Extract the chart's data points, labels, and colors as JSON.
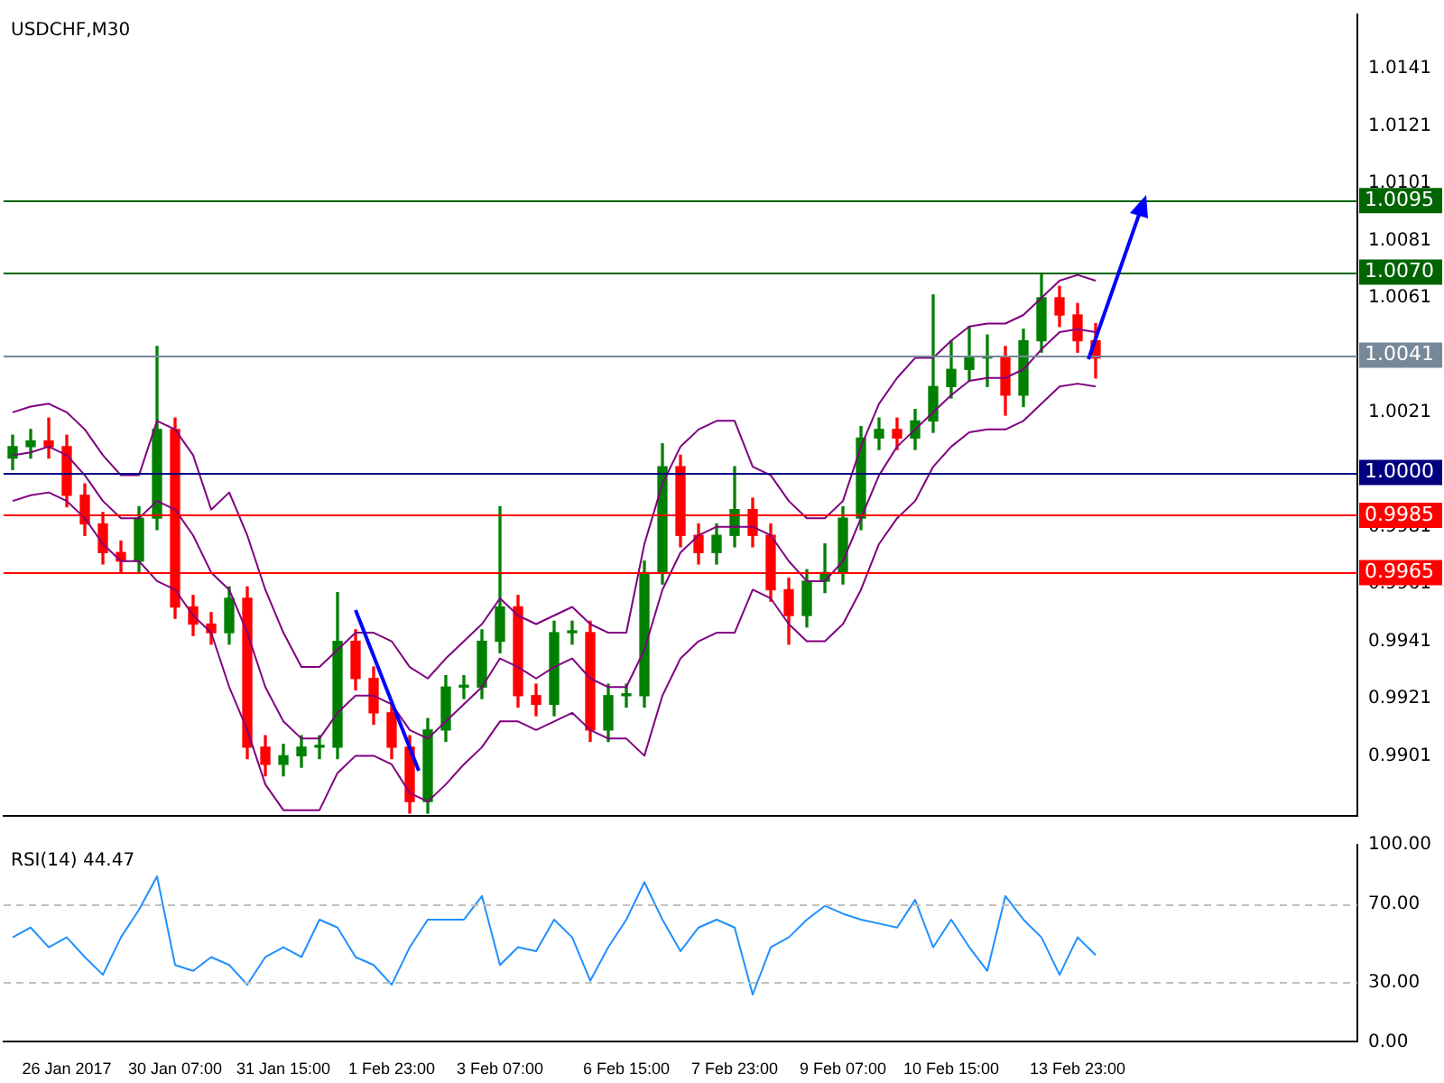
{
  "chart_data": [
    {
      "type": "candlestick",
      "title": "USDCHF,M30",
      "tick_labels": "y",
      "ohlc": [
        [
          1.0005,
          1.0013,
          1.0001,
          1.0009
        ],
        [
          1.0009,
          1.0015,
          1.0005,
          1.0011
        ],
        [
          1.0011,
          1.0019,
          1.0005,
          1.0009
        ],
        [
          1.0009,
          1.0013,
          0.9988,
          0.9992
        ],
        [
          0.9992,
          0.9996,
          0.9978,
          0.9982
        ],
        [
          0.9982,
          0.9986,
          0.9968,
          0.9972
        ],
        [
          0.9972,
          0.9976,
          0.9965,
          0.9969
        ],
        [
          0.9969,
          0.9988,
          0.9965,
          0.9984
        ],
        [
          0.9984,
          1.0044,
          0.998,
          1.0015
        ],
        [
          1.0015,
          1.0019,
          0.9949,
          0.9953
        ],
        [
          0.9953,
          0.9957,
          0.9943,
          0.9947
        ],
        [
          0.9947,
          0.9951,
          0.994,
          0.9944
        ],
        [
          0.9944,
          0.996,
          0.994,
          0.9956
        ],
        [
          0.9956,
          0.996,
          0.99,
          0.9904
        ],
        [
          0.9904,
          0.9908,
          0.9894,
          0.9898
        ],
        [
          0.9898,
          0.9905,
          0.9894,
          0.9901
        ],
        [
          0.9901,
          0.9908,
          0.9897,
          0.9904
        ],
        [
          0.9904,
          0.9908,
          0.99,
          0.9904
        ],
        [
          0.9904,
          0.9958,
          0.99,
          0.9941
        ],
        [
          0.9941,
          0.9945,
          0.9924,
          0.9928
        ],
        [
          0.9928,
          0.9932,
          0.9912,
          0.9916
        ],
        [
          0.9916,
          0.992,
          0.99,
          0.9904
        ],
        [
          0.9904,
          0.9908,
          0.9881,
          0.9885
        ],
        [
          0.9885,
          0.9914,
          0.9881,
          0.991
        ],
        [
          0.991,
          0.9929,
          0.9906,
          0.9925
        ],
        [
          0.9925,
          0.9929,
          0.9921,
          0.9925
        ],
        [
          0.9925,
          0.9945,
          0.9921,
          0.9941
        ],
        [
          0.9941,
          0.9988,
          0.9937,
          0.9953
        ],
        [
          0.9953,
          0.9957,
          0.9918,
          0.9922
        ],
        [
          0.9922,
          0.9926,
          0.9915,
          0.9919
        ],
        [
          0.9919,
          0.9948,
          0.9915,
          0.9944
        ],
        [
          0.9944,
          0.9948,
          0.994,
          0.9944
        ],
        [
          0.9944,
          0.9948,
          0.9906,
          0.991
        ],
        [
          0.991,
          0.9926,
          0.9906,
          0.9922
        ],
        [
          0.9922,
          0.9926,
          0.9918,
          0.9922
        ],
        [
          0.9922,
          0.9969,
          0.9918,
          0.9965
        ],
        [
          0.9965,
          1.001,
          0.9961,
          1.0002
        ],
        [
          1.0002,
          1.0006,
          0.9974,
          0.9978
        ],
        [
          0.9978,
          0.9982,
          0.9968,
          0.9972
        ],
        [
          0.9972,
          0.9982,
          0.9968,
          0.9978
        ],
        [
          0.9978,
          1.0002,
          0.9974,
          0.9987
        ],
        [
          0.9987,
          0.9991,
          0.9974,
          0.9978
        ],
        [
          0.9978,
          0.9982,
          0.9955,
          0.9959
        ],
        [
          0.9959,
          0.9963,
          0.994,
          0.995
        ],
        [
          0.995,
          0.9966,
          0.9946,
          0.9962
        ],
        [
          0.9962,
          0.9975,
          0.9958,
          0.9965
        ],
        [
          0.9965,
          0.9988,
          0.9961,
          0.9984
        ],
        [
          0.9984,
          1.0016,
          0.998,
          1.0012
        ],
        [
          1.0012,
          1.0019,
          1.0008,
          1.0015
        ],
        [
          1.0015,
          1.0019,
          1.0008,
          1.0012
        ],
        [
          1.0012,
          1.0022,
          1.0008,
          1.0018
        ],
        [
          1.0018,
          1.0062,
          1.0014,
          1.003
        ],
        [
          1.003,
          1.0046,
          1.0026,
          1.0036
        ],
        [
          1.0036,
          1.0051,
          1.0032,
          1.004
        ],
        [
          1.004,
          1.0048,
          1.003,
          1.004
        ],
        [
          1.004,
          1.0044,
          1.002,
          1.0027
        ],
        [
          1.0027,
          1.005,
          1.0023,
          1.0046
        ],
        [
          1.0046,
          1.0069,
          1.0042,
          1.0061
        ],
        [
          1.0061,
          1.0065,
          1.0051,
          1.0055
        ],
        [
          1.0055,
          1.0059,
          1.0042,
          1.0046
        ],
        [
          1.0046,
          1.0052,
          1.0033,
          1.004
        ],
        null,
        null,
        null,
        null,
        null,
        null,
        null,
        null,
        null,
        null,
        null,
        null,
        null,
        null
      ],
      "colors": [
        "#008000",
        "#008000",
        "#ff0000",
        "#ff0000",
        "#ff0000",
        "#ff0000",
        "#ff0000",
        "#008000",
        "#008000",
        "#ff0000",
        "#ff0000",
        "#ff0000",
        "#008000",
        "#ff0000",
        "#ff0000",
        "#008000",
        "#008000",
        "#008000",
        "#008000",
        "#ff0000",
        "#ff0000",
        "#ff0000",
        "#ff0000",
        "#008000",
        "#008000",
        "#008000",
        "#008000",
        "#008000",
        "#ff0000",
        "#ff0000",
        "#008000",
        "#008000",
        "#ff0000",
        "#008000",
        "#008000",
        "#008000",
        "#008000",
        "#ff0000",
        "#ff0000",
        "#008000",
        "#008000",
        "#ff0000",
        "#ff0000",
        "#ff0000",
        "#008000",
        "#008000",
        "#008000",
        "#008000",
        "#008000",
        "#ff0000",
        "#008000",
        "#008000",
        "#008000",
        "#008000",
        "#008000",
        "#ff0000",
        "#008000",
        "#008000",
        "#ff0000",
        "#ff0000",
        "#ff0000",
        null,
        null,
        null,
        null,
        null,
        null,
        null,
        null,
        null,
        null,
        null,
        null,
        null,
        null
      ],
      "series": [
        {
          "type": "line",
          "color": "#800080",
          "values": [
            1.0021,
            1.0023,
            1.0024,
            1.0021,
            1.0015,
            1.0006,
            0.9999,
            0.9999,
            1.0018,
            1.0015,
            1.0006,
            0.9987,
            0.9993,
            0.9978,
            0.9959,
            0.9944,
            0.9932,
            0.9932,
            0.9938,
            0.9944,
            0.9944,
            0.9941,
            0.9932,
            0.9928,
            0.9935,
            0.9941,
            0.9947,
            0.9956,
            0.995,
            0.9947,
            0.995,
            0.9953,
            0.9947,
            0.9944,
            0.9944,
            0.9975,
            0.9996,
            1.0009,
            1.0015,
            1.0018,
            1.0018,
            1.0002,
            0.9999,
            0.999,
            0.9984,
            0.9984,
            0.999,
            1.0009,
            1.0024,
            1.0033,
            1.004,
            1.004,
            1.0046,
            1.0051,
            1.0052,
            1.0052,
            1.0055,
            1.0061,
            1.0067,
            1.0069,
            1.0067,
            null,
            null,
            null,
            null,
            null,
            null,
            null,
            null,
            null,
            null,
            null,
            null,
            null,
            null
          ]
        },
        {
          "type": "line",
          "color": "#800080",
          "values": [
            1.0006,
            1.0007,
            1.0009,
            1.0006,
            0.9999,
            0.999,
            0.9984,
            0.9984,
            0.999,
            0.9987,
            0.9978,
            0.9965,
            0.9959,
            0.9944,
            0.9925,
            0.9913,
            0.9907,
            0.9907,
            0.9916,
            0.9922,
            0.9922,
            0.9919,
            0.991,
            0.9907,
            0.9913,
            0.9919,
            0.9925,
            0.9935,
            0.9932,
            0.9928,
            0.9932,
            0.9935,
            0.9928,
            0.9925,
            0.9925,
            0.9938,
            0.9959,
            0.9972,
            0.9978,
            0.9981,
            0.9981,
            0.9981,
            0.9978,
            0.9969,
            0.9962,
            0.9962,
            0.9969,
            0.9984,
            0.9999,
            1.0009,
            1.0015,
            1.0021,
            1.0027,
            1.0032,
            1.0033,
            1.0033,
            1.0036,
            1.0043,
            1.0049,
            1.005,
            1.0049,
            null,
            null,
            null,
            null,
            null,
            null,
            null,
            null,
            null,
            null,
            null,
            null,
            null,
            null
          ]
        },
        {
          "type": "line",
          "color": "#800080",
          "values": [
            0.999,
            0.9992,
            0.9993,
            0.999,
            0.9984,
            0.9975,
            0.9969,
            0.9969,
            0.9962,
            0.9959,
            0.995,
            0.9944,
            0.9925,
            0.991,
            0.9891,
            0.9882,
            0.9882,
            0.9882,
            0.9895,
            0.9901,
            0.9901,
            0.9898,
            0.9888,
            0.9885,
            0.9891,
            0.9898,
            0.9904,
            0.9913,
            0.9913,
            0.991,
            0.9913,
            0.9916,
            0.991,
            0.9907,
            0.9907,
            0.9901,
            0.9922,
            0.9935,
            0.9941,
            0.9944,
            0.9944,
            0.9959,
            0.9956,
            0.9947,
            0.9941,
            0.9941,
            0.9947,
            0.9959,
            0.9975,
            0.9984,
            0.999,
            1.0002,
            1.0009,
            1.0014,
            1.0015,
            1.0015,
            1.0018,
            1.0024,
            1.003,
            1.0031,
            1.003,
            null,
            null,
            null,
            null,
            null,
            null,
            null,
            null,
            null,
            null,
            null,
            null,
            null,
            null
          ]
        }
      ],
      "ylim": [
        0.988,
        1.016
      ],
      "yticks": [
        0.9901,
        0.9921,
        0.9941,
        0.9961,
        0.9981,
        1.0021,
        1.0061,
        1.0081,
        1.0101,
        1.0121,
        1.0141
      ],
      "ref_lines": [
        {
          "axis": "y",
          "value": 1.0095,
          "label": "1.0095",
          "color": "#006400"
        },
        {
          "axis": "y",
          "value": 1.007,
          "label": "1.0070",
          "color": "#006400"
        },
        {
          "axis": "y",
          "value": 1.0041,
          "label": "1.0041",
          "color": "#778899"
        },
        {
          "axis": "y",
          "value": 1.0,
          "label": "1.0000",
          "color": "#000080"
        },
        {
          "axis": "y",
          "value": 0.9985,
          "label": "0.9985",
          "color": "#ff0000"
        },
        {
          "axis": "y",
          "value": 0.9965,
          "label": "0.9965",
          "color": "#ff0000"
        }
      ]
    },
    {
      "type": "line",
      "title": "RSI(14) 44.47",
      "categories": [
        null,
        null,
        null,
        "26 Jan 2017",
        null,
        null,
        null,
        null,
        null,
        "30 Jan 07:00",
        null,
        null,
        null,
        null,
        null,
        "31 Jan 15:00",
        null,
        null,
        null,
        null,
        null,
        "1 Feb 23:00",
        null,
        null,
        null,
        null,
        null,
        "3 Feb 07:00",
        null,
        null,
        null,
        null,
        null,
        null,
        "6 Feb 15:00",
        null,
        null,
        null,
        null,
        null,
        "7 Feb 23:00",
        null,
        null,
        null,
        null,
        null,
        "9 Feb 07:00",
        null,
        null,
        null,
        null,
        null,
        "10 Feb 15:00",
        null,
        null,
        null,
        null,
        null,
        null,
        "13 Feb 23:00",
        null,
        null,
        null,
        null,
        null,
        null,
        null,
        null,
        null,
        null,
        null,
        null,
        null,
        null,
        null
      ],
      "series": [
        {
          "color": "#1e90ff",
          "values": [
            53,
            58,
            48,
            53,
            43,
            34,
            53,
            67,
            84,
            39,
            36,
            43,
            39,
            29,
            43,
            48,
            43,
            62,
            58,
            43,
            39,
            29,
            48,
            62,
            62,
            62,
            74,
            39,
            48,
            46,
            62,
            53,
            31,
            48,
            62,
            81,
            62,
            46,
            58,
            62,
            58,
            24,
            48,
            53,
            62,
            69,
            65,
            62,
            60,
            58,
            72,
            48,
            62,
            48,
            36,
            74,
            62,
            53,
            34,
            53,
            44,
            null,
            null,
            null,
            null,
            null,
            null,
            null,
            null,
            null,
            null,
            null,
            null,
            null,
            null
          ]
        }
      ],
      "ylim": [
        0,
        100
      ],
      "yticks": [
        {
          "value": 0,
          "label": "0.00"
        },
        {
          "value": 30,
          "label": "30.00"
        },
        {
          "value": 70,
          "label": "70.00"
        },
        {
          "value": 100,
          "label": "100.00"
        }
      ],
      "ref_lines": [
        {
          "axis": "y",
          "value": 30,
          "color": "#c0c0c0",
          "line_style": "dashed"
        },
        {
          "axis": "y",
          "value": 70,
          "color": "#c0c0c0",
          "line_style": "dashed"
        }
      ]
    }
  ]
}
